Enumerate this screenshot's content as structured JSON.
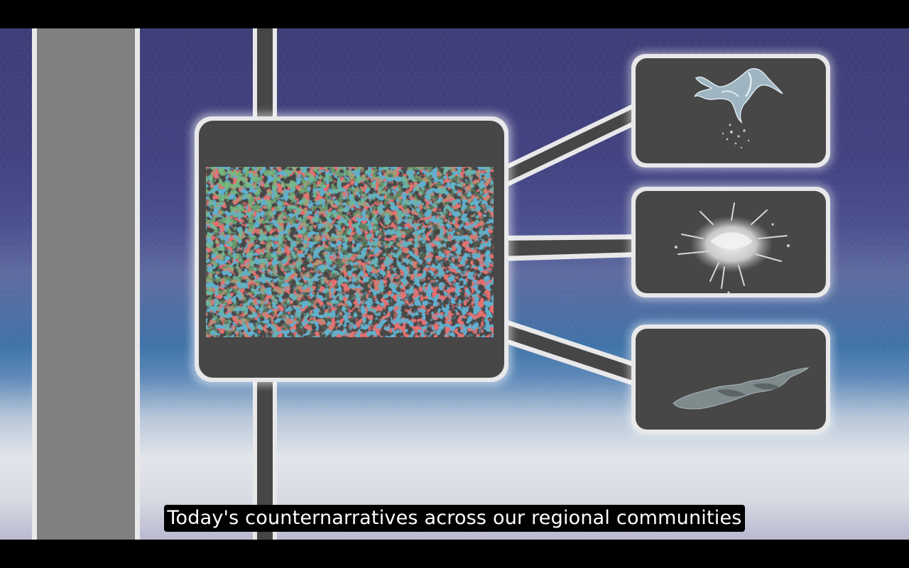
{
  "video": {
    "subtitle": "Today's counternarratives across our regional communities"
  },
  "diagram": {
    "main_panel": {
      "name": "noise-texture-panel",
      "texture_colors": [
        "#2e7d32",
        "#c62828",
        "#1e6d9e"
      ]
    },
    "output_panels": [
      {
        "name": "water-splash",
        "icon": "water-splash-image"
      },
      {
        "name": "liquid-burst",
        "icon": "liquid-burst-image"
      },
      {
        "name": "water-puddle",
        "icon": "water-puddle-image"
      }
    ]
  },
  "colors": {
    "panel_fill": "#474747",
    "panel_border": "#e8e8ea",
    "column_fill": "#808080",
    "connector_fill": "#464646"
  }
}
